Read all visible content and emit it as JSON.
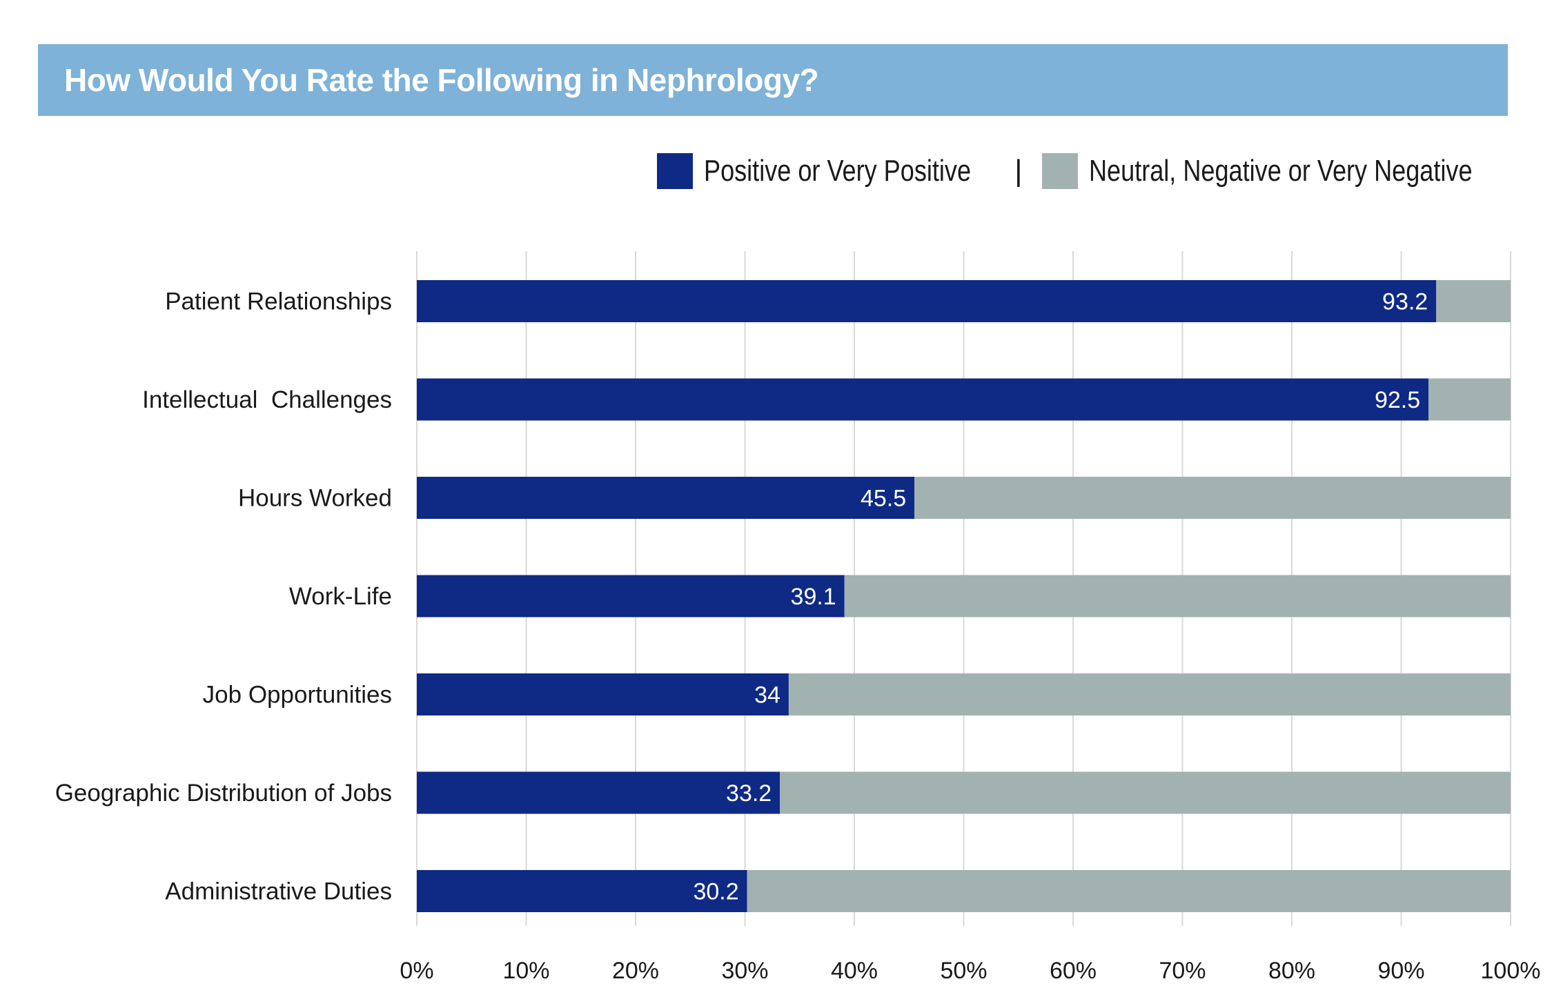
{
  "chart_data": {
    "type": "bar",
    "orientation": "horizontal",
    "stacked": true,
    "title": "How Would You Rate the Following in Nephrology?",
    "categories": [
      "Patient Relationships",
      "Intellectual  Challenges",
      "Hours Worked",
      "Work-Life",
      "Job Opportunities",
      "Geographic Distribution of Jobs",
      "Administrative Duties"
    ],
    "series": [
      {
        "name": "Positive or Very Positive",
        "color": "#0e2a85",
        "values": [
          93.2,
          92.5,
          45.5,
          39.1,
          34,
          33.2,
          30.2
        ],
        "value_labels": [
          "93.2",
          "92.5",
          "45.5",
          "39.1",
          "34",
          "33.2",
          "30.2"
        ]
      },
      {
        "name": "Neutral, Negative or Very Negative",
        "color": "#a2b2b0",
        "values": [
          6.8,
          7.5,
          54.5,
          60.9,
          66,
          66.8,
          69.8
        ]
      }
    ],
    "xlim": [
      0,
      100
    ],
    "xticks": [
      0,
      10,
      20,
      30,
      40,
      50,
      60,
      70,
      80,
      90,
      100
    ],
    "xtick_labels": [
      "0%",
      "10%",
      "20%",
      "30%",
      "40%",
      "50%",
      "60%",
      "70%",
      "80%",
      "90%",
      "100%"
    ],
    "xlabel": "",
    "ylabel": "",
    "grid": true,
    "legend_position": "top-right",
    "legend_separator": "|"
  },
  "colors": {
    "title_bar": "#7eb2d8",
    "grid": "#d9d9d9"
  }
}
